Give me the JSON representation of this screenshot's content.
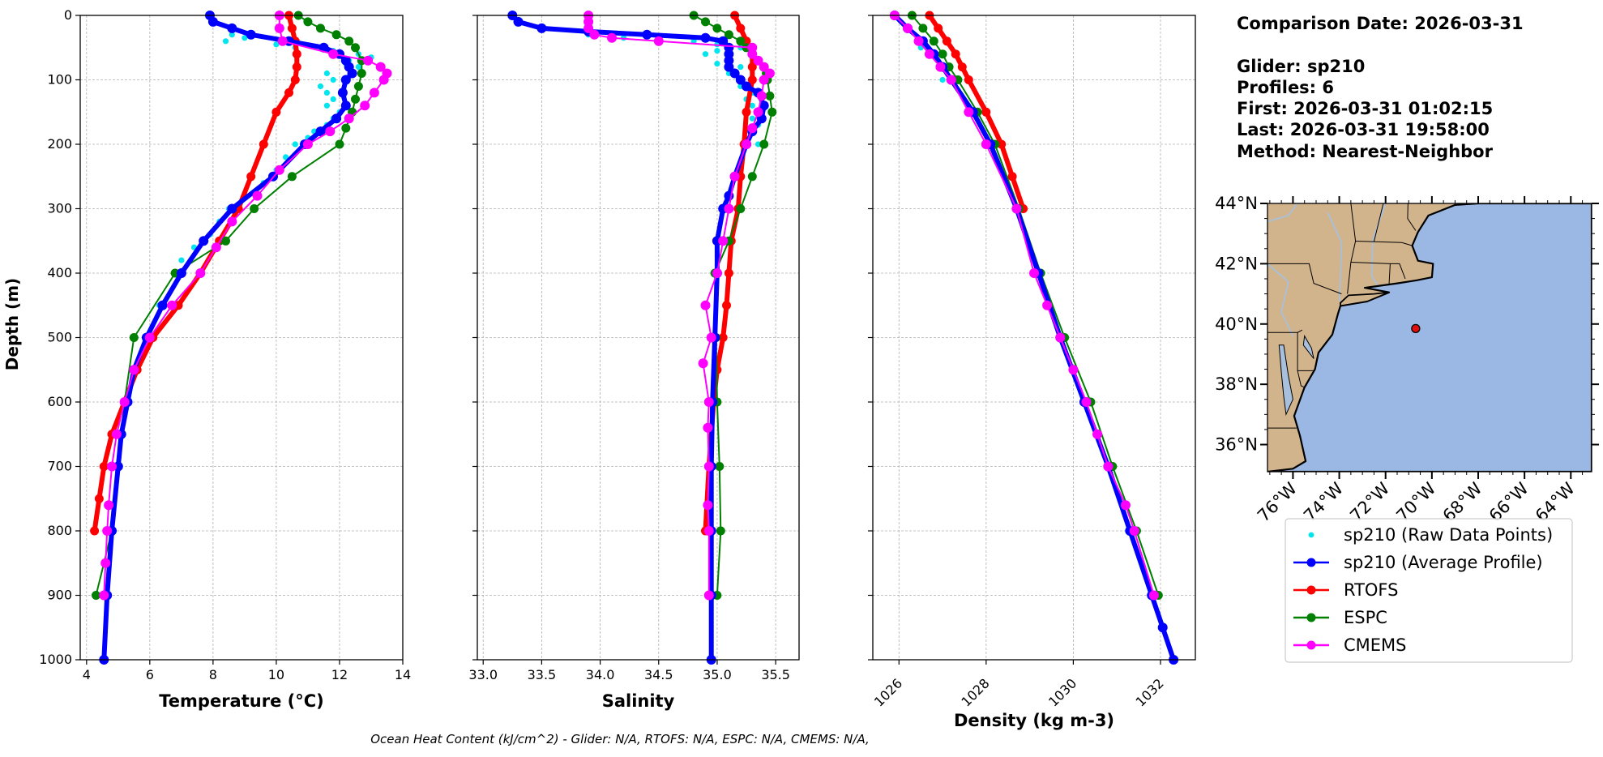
{
  "info": {
    "comparison": "Comparison Date: 2026-03-31",
    "glider": "Glider: sp210",
    "profiles": "Profiles: 6",
    "first": "First: 2026-03-31 01:02:15",
    "last": "Last: 2026-03-31 19:58:00",
    "method": "Method: Nearest-Neighbor"
  },
  "footer": "Ocean Heat Content (kJ/cm^2) - Glider: N/A,  RTOFS: N/A,  ESPC: N/A,  CMEMS: N/A,",
  "colors": {
    "raw": "#00e5ee",
    "avg": "#0000ff",
    "rtofs": "#ff0000",
    "espc": "#008000",
    "cmems": "#ff00ff",
    "land": "#d2b48c",
    "ocean": "#9ab8e3",
    "river": "#a8c0dc",
    "marker": "#e01010"
  },
  "legend": [
    "sp210 (Raw Data Points)",
    "sp210 (Average Profile)",
    "RTOFS",
    "ESPC",
    "CMEMS"
  ],
  "map": {
    "lat_ticks": [
      "44°N",
      "42°N",
      "40°N",
      "38°N",
      "36°N"
    ],
    "lon_ticks": [
      "76°W",
      "74°W",
      "72°W",
      "70°W",
      "68°W",
      "66°W",
      "64°W"
    ],
    "extent": {
      "lon_min": -77.1,
      "lon_max": -63.1,
      "lat_min": 35.1,
      "lat_max": 44.0
    },
    "glider_position": {
      "lon": -70.7,
      "lat": 39.85
    }
  },
  "chart_data": [
    {
      "type": "line",
      "xlabel": "Temperature (°C)",
      "ylabel": "Depth (m)",
      "xlim": [
        3.8,
        14.0
      ],
      "ylim": [
        1000,
        0
      ],
      "xticks": [
        4,
        6,
        8,
        10,
        12,
        14
      ],
      "yticks": [
        0,
        100,
        200,
        300,
        400,
        500,
        600,
        700,
        800,
        900,
        1000
      ],
      "grid": true,
      "series": [
        {
          "name": "sp210 (Raw Data Points)",
          "key": "raw",
          "depth": [
            30,
            35,
            40,
            45,
            50,
            55,
            60,
            65,
            70,
            75,
            80,
            90,
            100,
            110,
            120,
            130,
            140,
            150,
            160,
            170,
            180,
            190,
            200,
            220,
            240,
            260,
            280,
            300,
            320,
            340,
            360,
            380,
            400,
            450,
            500,
            550,
            600
          ],
          "values": [
            8.6,
            9.0,
            8.4,
            10.0,
            10.6,
            11.8,
            12.6,
            13.0,
            12.3,
            12.2,
            12.6,
            11.6,
            11.8,
            11.4,
            11.6,
            11.8,
            11.6,
            12.0,
            11.8,
            11.6,
            11.2,
            11.0,
            10.6,
            10.3,
            10.0,
            9.6,
            9.0,
            8.5,
            8.2,
            7.9,
            7.4,
            7.0,
            6.8,
            6.3,
            5.9,
            5.6,
            5.3
          ]
        },
        {
          "name": "sp210 (Average Profile)",
          "key": "avg",
          "depth": [
            0,
            10,
            20,
            30,
            40,
            50,
            60,
            70,
            80,
            90,
            100,
            120,
            140,
            160,
            180,
            200,
            250,
            300,
            350,
            400,
            450,
            500,
            550,
            600,
            650,
            700,
            800,
            900,
            1000
          ],
          "values": [
            7.9,
            8.0,
            8.6,
            9.2,
            10.4,
            11.5,
            12.0,
            12.2,
            12.3,
            12.4,
            12.2,
            12.1,
            12.2,
            11.9,
            11.4,
            10.9,
            9.9,
            8.6,
            7.7,
            7.0,
            6.4,
            5.9,
            5.5,
            5.3,
            5.1,
            5.0,
            4.8,
            4.65,
            4.55
          ]
        },
        {
          "name": "RTOFS",
          "key": "rtofs",
          "depth": [
            0,
            20,
            40,
            60,
            80,
            100,
            120,
            150,
            200,
            250,
            300,
            350,
            400,
            450,
            500,
            550,
            600,
            650,
            700,
            750,
            800
          ],
          "values": [
            10.4,
            10.5,
            10.6,
            10.65,
            10.65,
            10.6,
            10.4,
            10.0,
            9.6,
            9.2,
            8.8,
            8.2,
            7.6,
            6.9,
            6.1,
            5.6,
            5.2,
            4.8,
            4.55,
            4.4,
            4.25
          ]
        },
        {
          "name": "ESPC",
          "key": "espc",
          "depth": [
            0,
            10,
            20,
            30,
            40,
            50,
            70,
            90,
            110,
            130,
            150,
            175,
            200,
            250,
            300,
            350,
            400,
            500,
            600,
            700,
            800,
            900
          ],
          "values": [
            10.7,
            11.0,
            11.4,
            11.9,
            12.3,
            12.5,
            12.7,
            12.7,
            12.6,
            12.5,
            12.4,
            12.2,
            12.0,
            10.5,
            9.3,
            8.4,
            6.8,
            5.5,
            5.2,
            5.0,
            4.8,
            4.3
          ]
        },
        {
          "name": "CMEMS",
          "key": "cmems",
          "depth": [
            0,
            20,
            40,
            60,
            70,
            80,
            90,
            100,
            120,
            140,
            160,
            180,
            200,
            240,
            280,
            320,
            360,
            400,
            450,
            500,
            550,
            600,
            650,
            700,
            760,
            800,
            850,
            900
          ],
          "values": [
            10.1,
            10.1,
            10.2,
            11.8,
            12.9,
            13.3,
            13.5,
            13.4,
            13.1,
            12.8,
            12.3,
            11.7,
            11.0,
            10.1,
            9.4,
            8.6,
            8.1,
            7.6,
            6.7,
            6.0,
            5.5,
            5.2,
            4.95,
            4.8,
            4.7,
            4.65,
            4.6,
            4.55
          ]
        }
      ]
    },
    {
      "type": "line",
      "xlabel": "Salinity",
      "xlim": [
        32.95,
        35.7
      ],
      "ylim": [
        1000,
        0
      ],
      "xticks": [
        33.0,
        33.5,
        34.0,
        34.5,
        35.0,
        35.5
      ],
      "grid": true,
      "series": [
        {
          "name": "sp210 (Raw Data Points)",
          "key": "raw",
          "depth": [
            30,
            35,
            40,
            45,
            50,
            55,
            60,
            65,
            70,
            75,
            80,
            90,
            100,
            110,
            120,
            130,
            140,
            150,
            160,
            170,
            180,
            200
          ],
          "values": [
            33.9,
            34.2,
            34.8,
            35.0,
            35.2,
            35.0,
            34.9,
            35.3,
            35.1,
            35.0,
            35.2,
            35.1,
            35.3,
            35.2,
            35.3,
            35.25,
            35.3,
            35.35,
            35.3,
            35.35,
            35.3,
            35.35
          ]
        },
        {
          "name": "sp210 (Average Profile)",
          "key": "avg",
          "depth": [
            0,
            10,
            20,
            25,
            30,
            35,
            40,
            50,
            60,
            70,
            80,
            90,
            100,
            110,
            120,
            140,
            160,
            180,
            200,
            250,
            280,
            300,
            350,
            400,
            500,
            600,
            700,
            800,
            900,
            1000
          ],
          "values": [
            33.25,
            33.3,
            33.5,
            33.9,
            34.4,
            34.9,
            35.05,
            35.1,
            35.1,
            35.1,
            35.1,
            35.15,
            35.2,
            35.25,
            35.35,
            35.4,
            35.38,
            35.3,
            35.25,
            35.15,
            35.1,
            35.05,
            35.0,
            35.0,
            34.98,
            34.96,
            34.95,
            34.95,
            34.95,
            34.95
          ]
        },
        {
          "name": "RTOFS",
          "key": "rtofs",
          "depth": [
            0,
            20,
            40,
            60,
            80,
            100,
            150,
            200,
            250,
            300,
            350,
            400,
            450,
            500,
            550,
            600,
            700,
            800
          ],
          "values": [
            35.15,
            35.2,
            35.25,
            35.3,
            35.3,
            35.3,
            35.25,
            35.23,
            35.2,
            35.18,
            35.12,
            35.1,
            35.08,
            35.05,
            35.0,
            34.97,
            34.93,
            34.9
          ]
        },
        {
          "name": "ESPC",
          "key": "espc",
          "depth": [
            0,
            10,
            20,
            30,
            40,
            50,
            60,
            70,
            80,
            90,
            100,
            125,
            150,
            200,
            250,
            300,
            350,
            400,
            500,
            600,
            700,
            800,
            900
          ],
          "values": [
            34.8,
            34.9,
            35.0,
            35.1,
            35.2,
            35.25,
            35.3,
            35.35,
            35.4,
            35.42,
            35.43,
            35.45,
            35.47,
            35.4,
            35.3,
            35.2,
            35.1,
            34.98,
            34.99,
            35.0,
            35.02,
            35.03,
            35.0
          ]
        },
        {
          "name": "CMEMS",
          "key": "cmems",
          "depth": [
            0,
            10,
            20,
            30,
            35,
            40,
            50,
            60,
            70,
            80,
            90,
            100,
            125,
            150,
            175,
            200,
            250,
            300,
            350,
            400,
            450,
            500,
            540,
            600,
            640,
            700,
            760,
            800,
            900
          ],
          "values": [
            33.9,
            33.9,
            33.9,
            33.95,
            34.1,
            34.5,
            35.3,
            35.3,
            35.35,
            35.4,
            35.45,
            35.4,
            35.38,
            35.35,
            35.3,
            35.25,
            35.15,
            35.1,
            35.05,
            35.0,
            34.9,
            34.95,
            34.88,
            34.93,
            34.92,
            34.93,
            34.92,
            34.93,
            34.93
          ]
        }
      ]
    },
    {
      "type": "line",
      "xlabel": "Density (kg m-3)",
      "xlim": [
        1025.4,
        1032.8
      ],
      "ylim": [
        1000,
        0
      ],
      "xticks": [
        1026,
        1028,
        1030,
        1032
      ],
      "grid": true,
      "series": [
        {
          "name": "sp210 (Raw Data Points)",
          "key": "raw",
          "depth": [
            0,
            50,
            100
          ],
          "values": [
            1025.9,
            1026.5,
            1027.0
          ]
        },
        {
          "name": "sp210 (Average Profile)",
          "key": "avg",
          "depth": [
            0,
            20,
            40,
            60,
            80,
            100,
            150,
            200,
            300,
            400,
            500,
            600,
            700,
            800,
            900,
            950,
            1000
          ],
          "values": [
            1025.9,
            1026.2,
            1026.55,
            1026.8,
            1027.0,
            1027.2,
            1027.7,
            1028.1,
            1028.7,
            1029.2,
            1029.7,
            1030.25,
            1030.8,
            1031.3,
            1031.8,
            1032.05,
            1032.3
          ]
        },
        {
          "name": "RTOFS",
          "key": "rtofs",
          "depth": [
            0,
            20,
            40,
            60,
            80,
            100,
            150,
            200,
            250,
            300
          ],
          "values": [
            1026.7,
            1026.9,
            1027.1,
            1027.3,
            1027.45,
            1027.6,
            1028.0,
            1028.35,
            1028.6,
            1028.85
          ]
        },
        {
          "name": "ESPC",
          "key": "espc",
          "depth": [
            0,
            20,
            40,
            60,
            80,
            100,
            150,
            200,
            300,
            400,
            500,
            600,
            700,
            800,
            900
          ],
          "values": [
            1026.3,
            1026.55,
            1026.8,
            1027.0,
            1027.15,
            1027.35,
            1027.8,
            1028.2,
            1028.75,
            1029.25,
            1029.8,
            1030.4,
            1030.9,
            1031.45,
            1031.95
          ]
        },
        {
          "name": "CMEMS",
          "key": "cmems",
          "depth": [
            0,
            20,
            40,
            60,
            80,
            100,
            150,
            200,
            300,
            400,
            450,
            500,
            550,
            600,
            650,
            700,
            760,
            800,
            900
          ],
          "values": [
            1025.9,
            1026.2,
            1026.45,
            1026.7,
            1026.95,
            1027.2,
            1027.6,
            1028.0,
            1028.7,
            1029.1,
            1029.4,
            1029.7,
            1030.0,
            1030.3,
            1030.55,
            1030.8,
            1031.2,
            1031.4,
            1031.85
          ]
        }
      ]
    }
  ]
}
